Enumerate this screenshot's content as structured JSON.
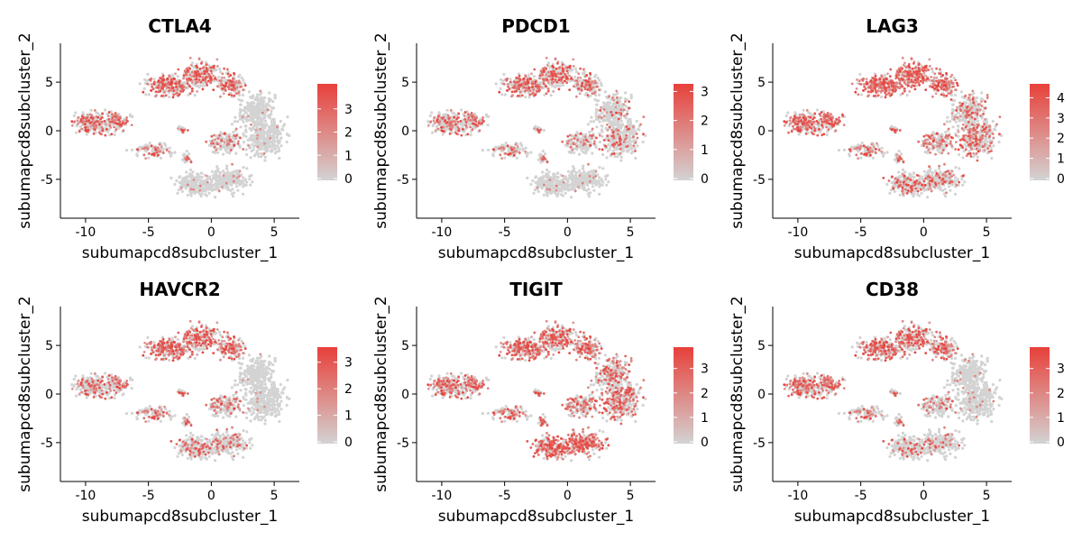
{
  "chart_data": [
    {
      "type": "scatter",
      "title": "CTLA4",
      "xlabel": "subumapcd8subcluster_1",
      "ylabel": "subumapcd8subcluster_2",
      "xlim": [
        -12,
        7
      ],
      "ylim": [
        -9,
        9
      ],
      "xticks": [
        -10,
        -5,
        0,
        5
      ],
      "yticks": [
        -5,
        0,
        5
      ],
      "color_low": "#d3d3d3",
      "color_high": "#e8403a",
      "legend": {
        "max": 4,
        "ticks": [
          0,
          1,
          2,
          3
        ]
      },
      "expression_regions": [
        {
          "region": "top",
          "level": 0.55
        },
        {
          "region": "left",
          "level": 0.45
        },
        {
          "region": "right",
          "level": 0.04
        },
        {
          "region": "bottom",
          "level": 0.05
        },
        {
          "region": "middle",
          "level": 0.25
        }
      ]
    },
    {
      "type": "scatter",
      "title": "PDCD1",
      "xlabel": "subumapcd8subcluster_1",
      "ylabel": "subumapcd8subcluster_2",
      "xlim": [
        -12,
        7
      ],
      "ylim": [
        -9,
        9
      ],
      "xticks": [
        -10,
        -5,
        0,
        5
      ],
      "yticks": [
        -5,
        0,
        5
      ],
      "color_low": "#d3d3d3",
      "color_high": "#e8403a",
      "legend": {
        "max": 3.2,
        "ticks": [
          0,
          1,
          2,
          3
        ]
      },
      "expression_regions": [
        {
          "region": "top",
          "level": 0.5
        },
        {
          "region": "left",
          "level": 0.35
        },
        {
          "region": "right",
          "level": 0.15
        },
        {
          "region": "bottom",
          "level": 0.05
        },
        {
          "region": "middle",
          "level": 0.2
        }
      ]
    },
    {
      "type": "scatter",
      "title": "LAG3",
      "xlabel": "subumapcd8subcluster_1",
      "ylabel": "subumapcd8subcluster_2",
      "xlim": [
        -12,
        7
      ],
      "ylim": [
        -9,
        9
      ],
      "xticks": [
        -10,
        -5,
        0,
        5
      ],
      "yticks": [
        -5,
        0,
        5
      ],
      "color_low": "#d3d3d3",
      "color_high": "#e8403a",
      "legend": {
        "max": 4.6,
        "ticks": [
          0,
          1,
          2,
          3,
          4
        ]
      },
      "expression_regions": [
        {
          "region": "top",
          "level": 0.75
        },
        {
          "region": "left",
          "level": 0.55
        },
        {
          "region": "right",
          "level": 0.35
        },
        {
          "region": "bottom",
          "level": 0.3
        },
        {
          "region": "middle",
          "level": 0.35
        }
      ]
    },
    {
      "type": "scatter",
      "title": "HAVCR2",
      "xlabel": "subumapcd8subcluster_1",
      "ylabel": "subumapcd8subcluster_2",
      "xlim": [
        -12,
        7
      ],
      "ylim": [
        -9,
        9
      ],
      "xticks": [
        -10,
        -5,
        0,
        5
      ],
      "yticks": [
        -5,
        0,
        5
      ],
      "color_low": "#d3d3d3",
      "color_high": "#e8403a",
      "legend": {
        "max": 3.5,
        "ticks": [
          0,
          1,
          2,
          3
        ]
      },
      "expression_regions": [
        {
          "region": "top",
          "level": 0.6
        },
        {
          "region": "left",
          "level": 0.3
        },
        {
          "region": "right",
          "level": 0.03
        },
        {
          "region": "bottom",
          "level": 0.25
        },
        {
          "region": "middle",
          "level": 0.3
        }
      ]
    },
    {
      "type": "scatter",
      "title": "TIGIT",
      "xlabel": "subumapcd8subcluster_1",
      "ylabel": "subumapcd8subcluster_2",
      "xlim": [
        -12,
        7
      ],
      "ylim": [
        -9,
        9
      ],
      "xticks": [
        -10,
        -5,
        0,
        5
      ],
      "yticks": [
        -5,
        0,
        5
      ],
      "color_low": "#d3d3d3",
      "color_high": "#e8403a",
      "legend": {
        "max": 3.8,
        "ticks": [
          0,
          1,
          2,
          3
        ]
      },
      "expression_regions": [
        {
          "region": "top",
          "level": 0.6
        },
        {
          "region": "left",
          "level": 0.45
        },
        {
          "region": "right",
          "level": 0.45
        },
        {
          "region": "bottom",
          "level": 0.75
        },
        {
          "region": "middle",
          "level": 0.4
        }
      ]
    },
    {
      "type": "scatter",
      "title": "CD38",
      "xlabel": "subumapcd8subcluster_1",
      "ylabel": "subumapcd8subcluster_2",
      "xlim": [
        -12,
        7
      ],
      "ylim": [
        -9,
        9
      ],
      "xticks": [
        -10,
        -5,
        0,
        5
      ],
      "yticks": [
        -5,
        0,
        5
      ],
      "color_low": "#d3d3d3",
      "color_high": "#e8403a",
      "legend": {
        "max": 3.8,
        "ticks": [
          0,
          1,
          2,
          3
        ]
      },
      "expression_regions": [
        {
          "region": "top",
          "level": 0.55
        },
        {
          "region": "left",
          "level": 0.5
        },
        {
          "region": "right",
          "level": 0.05
        },
        {
          "region": "bottom",
          "level": 0.15
        },
        {
          "region": "middle",
          "level": 0.2
        }
      ]
    }
  ]
}
